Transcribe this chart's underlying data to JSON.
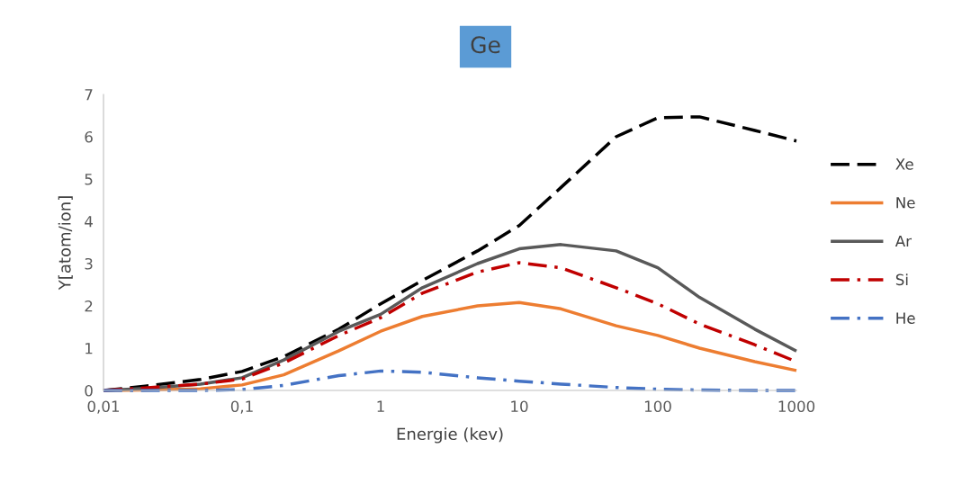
{
  "chart_data": {
    "type": "line",
    "title": "Ge",
    "xlabel": "Energie (kev)",
    "ylabel": "Y[atom/ion]",
    "log": "x",
    "x": [
      0.01,
      0.02,
      0.05,
      0.1,
      0.2,
      0.5,
      1,
      2,
      5,
      10,
      20,
      50,
      100,
      200,
      500,
      1000
    ],
    "xlim": [
      0.01,
      1000
    ],
    "xticks": [
      {
        "value": 0.01,
        "label": "0,01"
      },
      {
        "value": 0.1,
        "label": "0,1"
      },
      1,
      10,
      100,
      1000
    ],
    "ylim": [
      0,
      7
    ],
    "yticks": [
      0,
      1,
      2,
      3,
      4,
      5,
      6,
      7
    ],
    "grid": false,
    "legend": "right",
    "marker": "none",
    "series": [
      {
        "name": "Xe",
        "color": "#000000",
        "line_style": "dashed",
        "values": [
          0,
          0.1,
          0.26,
          0.45,
          0.8,
          1.45,
          2.05,
          2.6,
          3.3,
          3.9,
          4.8,
          6.0,
          6.45,
          6.47,
          6.15,
          5.9
        ]
      },
      {
        "name": "Ne",
        "color": "#ed7d31",
        "line_style": "solid",
        "values": [
          0,
          0.01,
          0.04,
          0.13,
          0.37,
          0.94,
          1.4,
          1.75,
          2.0,
          2.08,
          1.93,
          1.53,
          1.3,
          1.0,
          0.68,
          0.47
        ]
      },
      {
        "name": "Ar",
        "color": "#595959",
        "line_style": "solid",
        "values": [
          0,
          0.05,
          0.15,
          0.3,
          0.72,
          1.4,
          1.8,
          2.43,
          3.0,
          3.35,
          3.45,
          3.3,
          2.9,
          2.2,
          1.45,
          0.93
        ]
      },
      {
        "name": "Si",
        "color": "#c00000",
        "line_style": "dashdot",
        "values": [
          0,
          0.06,
          0.15,
          0.27,
          0.65,
          1.3,
          1.72,
          2.3,
          2.8,
          3.02,
          2.9,
          2.43,
          2.05,
          1.57,
          1.08,
          0.68
        ]
      },
      {
        "name": "He",
        "color": "#4472c4",
        "line_style": "dashdot",
        "values": [
          0,
          0,
          0,
          0.02,
          0.12,
          0.35,
          0.46,
          0.43,
          0.3,
          0.22,
          0.15,
          0.07,
          0.03,
          0.01,
          0,
          0
        ]
      }
    ]
  }
}
